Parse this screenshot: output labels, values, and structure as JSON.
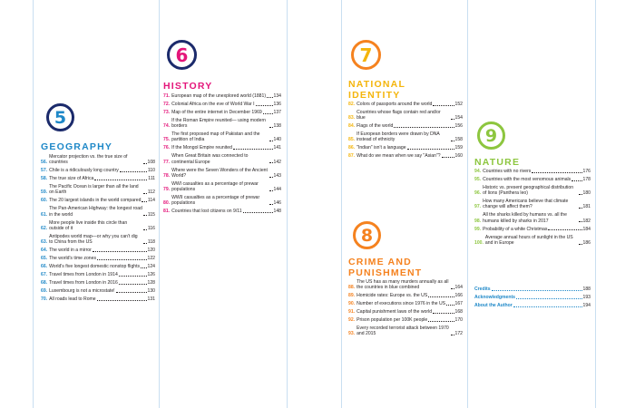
{
  "colors": {
    "geography": "#1e88c8",
    "history": "#e4157a",
    "national_identity": "#f4b50c",
    "crime": "#f5821f",
    "nature": "#8dc63f",
    "navy": "#1b2a6b",
    "extras": "#1e88c8"
  },
  "geography": {
    "number": "5",
    "title": "GEOGRAPHY",
    "entries": [
      {
        "num": "56.",
        "title": "Mercator projection vs. the true size of countries",
        "page": "108"
      },
      {
        "num": "57.",
        "title": "Chile is a ridiculously long country",
        "page": "110"
      },
      {
        "num": "58.",
        "title": "The true size of Africa",
        "page": "111"
      },
      {
        "num": "59.",
        "title": "The Pacific Ocean is larger than all the land on Earth",
        "page": "112"
      },
      {
        "num": "60.",
        "title": "The 20 largest islands in the world compared",
        "page": "114"
      },
      {
        "num": "61.",
        "title": "The Pan-American Highway: the longest road in the world",
        "page": "115"
      },
      {
        "num": "62.",
        "title": "More people live inside this circle than outside of it",
        "page": "116"
      },
      {
        "num": "63.",
        "title": "Antipodes world map—or why you can't dig to China from the US",
        "page": "118"
      },
      {
        "num": "64.",
        "title": "The world in a mirror",
        "page": "120"
      },
      {
        "num": "65.",
        "title": "The world's time zones",
        "page": "122"
      },
      {
        "num": "66.",
        "title": "World's five longest domestic nonstop flights",
        "page": "124"
      },
      {
        "num": "67.",
        "title": "Travel times from London in 1914",
        "page": "126"
      },
      {
        "num": "68.",
        "title": "Travel times from London in 2016",
        "page": "128"
      },
      {
        "num": "69.",
        "title": "Luxembourg is not a microstate!",
        "page": "130"
      },
      {
        "num": "70.",
        "title": "All roads lead to Rome",
        "page": "131"
      }
    ]
  },
  "history": {
    "number": "6",
    "title": "HISTORY",
    "entries": [
      {
        "num": "71.",
        "title": "European map of the unexplored world (1881)",
        "page": "134"
      },
      {
        "num": "72.",
        "title": "Colonial Africa on the eve of World War I",
        "page": "136"
      },
      {
        "num": "73.",
        "title": "Map of the entire internet in December 1969",
        "page": "137"
      },
      {
        "num": "74.",
        "title": "If the Roman Empire reunited— using modern borders",
        "page": "138"
      },
      {
        "num": "75.",
        "title": "The first proposed map of Pakistan and the partition of India",
        "page": "140"
      },
      {
        "num": "76.",
        "title": "If the Mongol Empire reunited",
        "page": "141"
      },
      {
        "num": "77.",
        "title": "When Great Britain was connected to continental Europe",
        "page": "142"
      },
      {
        "num": "78.",
        "title": "Where were the Seven Wonders of the Ancient World?",
        "page": "143"
      },
      {
        "num": "79.",
        "title": "WWI casualties as a percentage of prewar populations",
        "page": "144"
      },
      {
        "num": "80.",
        "title": "WWII casualties as a percentage of prewar populations",
        "page": "146"
      },
      {
        "num": "81.",
        "title": "Countries that lost citizens on 9/11",
        "page": "148"
      }
    ]
  },
  "national_identity": {
    "number": "7",
    "title_line1": "NATIONAL",
    "title_line2": "IDENTITY",
    "entries": [
      {
        "num": "82.",
        "title": "Colors of passports around the world",
        "page": "152"
      },
      {
        "num": "83.",
        "title": "Countries whose flags contain red and/or blue",
        "page": "154"
      },
      {
        "num": "84.",
        "title": "Flags of the world",
        "page": "156"
      },
      {
        "num": "85.",
        "title": "If European borders were drawn by DNA instead of ethnicity",
        "page": "158"
      },
      {
        "num": "86.",
        "title": "\"Indian\" isn't a language",
        "page": "159"
      },
      {
        "num": "87.",
        "title": "What do we mean when we say \"Asian\"?",
        "page": "160"
      }
    ]
  },
  "crime": {
    "number": "8",
    "title_line1": "CRIME AND",
    "title_line2": "PUNISHMENT",
    "entries": [
      {
        "num": "88.",
        "title": "The US has as many murders annually as all the countries in blue combined",
        "page": "164"
      },
      {
        "num": "89.",
        "title": "Homicide rates: Europe vs. the US",
        "page": "166"
      },
      {
        "num": "90.",
        "title": "Number of executions since 1976 in the US",
        "page": "167"
      },
      {
        "num": "91.",
        "title": "Capital punishment laws of the world",
        "page": "168"
      },
      {
        "num": "92.",
        "title": "Prison population per 100K people",
        "page": "170"
      },
      {
        "num": "93.",
        "title": "Every recorded terrorist attack between 1970 and 2015",
        "page": "172"
      }
    ]
  },
  "nature": {
    "number": "9",
    "title": "NATURE",
    "entries": [
      {
        "num": "94.",
        "title": "Countries with no rivers",
        "page": "176"
      },
      {
        "num": "95.",
        "title": "Countries with the most venomous animals",
        "page": "178"
      },
      {
        "num": "96.",
        "title": "Historic vs. present geographical distribution of lions (Panthera leo)",
        "page": "180"
      },
      {
        "num": "97.",
        "title": "How many Americans believe that climate change will affect them?",
        "page": "181"
      },
      {
        "num": "98.",
        "title": "All the sharks killed by humans vs. all the humans killed by sharks in 2017",
        "page": "182"
      },
      {
        "num": "99.",
        "title": "Probability of a white Christmas",
        "page": "184"
      },
      {
        "num": "100.",
        "title": "Average annual hours of sunlight in the US and in Europe",
        "page": "186"
      }
    ]
  },
  "extras": [
    {
      "title": "Credits",
      "page": "188"
    },
    {
      "title": "Acknowledgments",
      "page": "193"
    },
    {
      "title": "About the Author",
      "page": "194"
    }
  ]
}
